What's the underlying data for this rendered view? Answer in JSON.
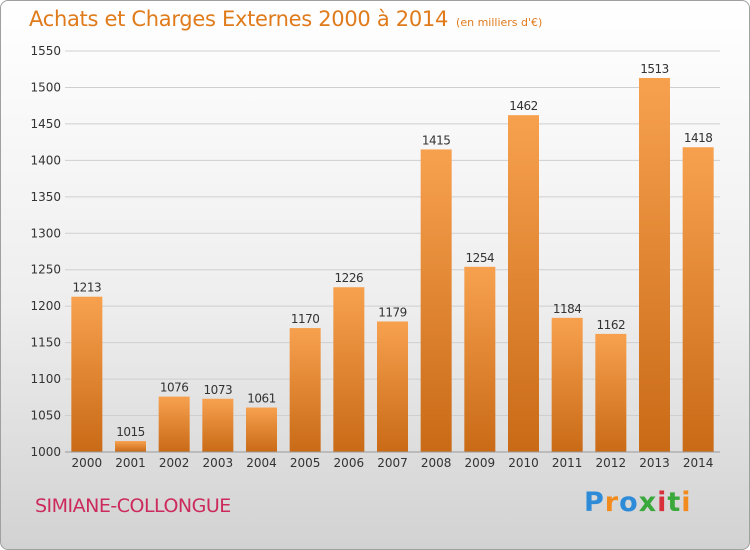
{
  "title": "Achats et Charges Externes 2000 à 2014",
  "unit": "(en milliers d'€)",
  "commune": "SIMIANE-COLLONGUE",
  "brand": {
    "letters": [
      "P",
      "r",
      "o",
      "x",
      "i",
      "t",
      "i"
    ],
    "colors": [
      "#2e8bd8",
      "#f28a1c",
      "#2e8bd8",
      "#3aa83a",
      "#d8313c",
      "#3aa83a",
      "#f28a1c"
    ]
  },
  "colors": {
    "title": "#e07b1c",
    "bar_top": "#f7a14f",
    "bar_bottom": "#c96a16",
    "commune": "#cc2a5c"
  },
  "chart_data": {
    "type": "bar",
    "categories": [
      "2000",
      "2001",
      "2002",
      "2003",
      "2004",
      "2005",
      "2006",
      "2007",
      "2008",
      "2009",
      "2010",
      "2011",
      "2012",
      "2013",
      "2014"
    ],
    "values": [
      1213,
      1015,
      1076,
      1073,
      1061,
      1170,
      1226,
      1179,
      1415,
      1254,
      1462,
      1184,
      1162,
      1513,
      1418
    ],
    "ylim": [
      1000,
      1550
    ],
    "yticks": [
      1000,
      1050,
      1100,
      1150,
      1200,
      1250,
      1300,
      1350,
      1400,
      1450,
      1500,
      1550
    ],
    "grid": true,
    "data_labels": true
  }
}
